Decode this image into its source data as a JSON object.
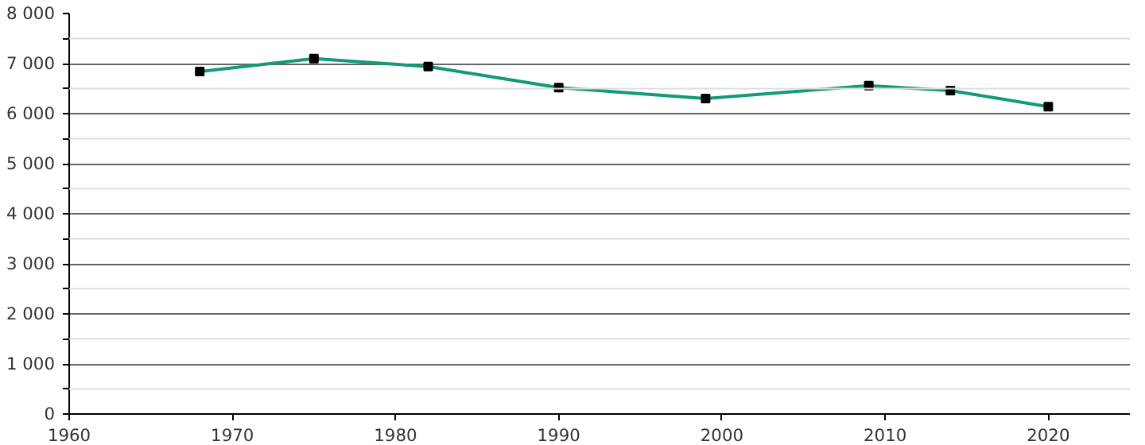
{
  "chart_data": {
    "type": "line",
    "x": [
      1968,
      1975,
      1982,
      1990,
      1999,
      2009,
      2014,
      2020
    ],
    "series": [
      {
        "color": "#139a76",
        "values": [
          6840,
          7100,
          6940,
          6520,
          6300,
          6560,
          6460,
          6140
        ]
      }
    ],
    "xlim": [
      1960,
      2025
    ],
    "xticks": [
      1960,
      1970,
      1980,
      1990,
      2000,
      2010,
      2020
    ],
    "ylim": [
      0,
      8000
    ],
    "yticks": [
      0,
      {
        "value": 500,
        "label": null
      },
      {
        "value": 1000,
        "label": "1 000"
      },
      {
        "value": 1500,
        "label": null
      },
      {
        "value": 2000,
        "label": "2 000"
      },
      {
        "value": 2500,
        "label": null
      },
      {
        "value": 3000,
        "label": "3 000"
      },
      {
        "value": 3500,
        "label": null
      },
      {
        "value": 4000,
        "label": "4 000"
      },
      {
        "value": 4500,
        "label": null
      },
      {
        "value": 5000,
        "label": "5 000"
      },
      {
        "value": 5500,
        "label": null
      },
      {
        "value": 6000,
        "label": "6 000"
      },
      {
        "value": 6500,
        "label": null
      },
      {
        "value": 7000,
        "label": "7 000"
      },
      {
        "value": 7500,
        "label": null
      },
      {
        "value": 8000,
        "label": "8 000"
      }
    ],
    "grid": "y",
    "marker": "square",
    "line_style": "solid"
  }
}
